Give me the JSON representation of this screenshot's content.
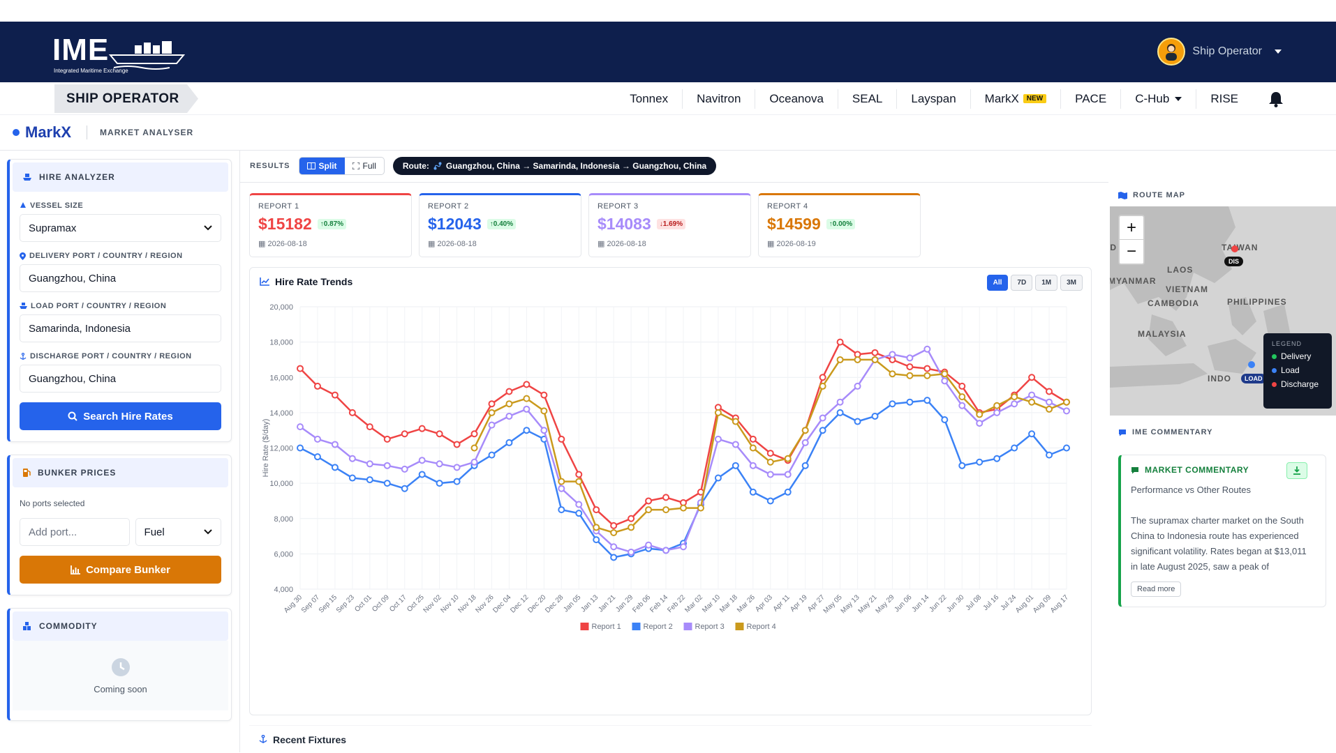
{
  "header": {
    "logo_text": "IME",
    "logo_subtitle": "Integrated Maritime Exchange",
    "user_name": "Ship Operator"
  },
  "subnav": {
    "role": "SHIP OPERATOR",
    "menu": [
      "Tonnex",
      "Navitron",
      "Oceanova",
      "SEAL",
      "Layspan",
      "MarkX",
      "PACE",
      "C-Hub",
      "RISE"
    ],
    "new_badge": "NEW"
  },
  "breadcrumb": {
    "brand": "MarkX",
    "page": "MARKET ANALYSER"
  },
  "hire_analyzer": {
    "title": "HIRE ANALYZER",
    "vessel_size_label": "VESSEL SIZE",
    "vessel_size": "Supramax",
    "delivery_label": "DELIVERY PORT / COUNTRY / REGION",
    "delivery": "Guangzhou, China",
    "load_label": "LOAD PORT / COUNTRY / REGION",
    "load": "Samarinda, Indonesia",
    "discharge_label": "DISCHARGE PORT / COUNTRY / REGION",
    "discharge": "Guangzhou, China",
    "search_button": "Search Hire Rates"
  },
  "bunker": {
    "title": "BUNKER PRICES",
    "empty": "No ports selected",
    "add_port_placeholder": "Add port...",
    "fuel": "Fuel",
    "compare_button": "Compare Bunker"
  },
  "commodity": {
    "title": "COMMODITY",
    "status": "Coming soon"
  },
  "results": {
    "label": "RESULTS",
    "split": "Split",
    "full": "Full",
    "route_label": "Route:",
    "route": "Guangzhou, China → Samarinda, Indonesia → Guangzhou, China"
  },
  "reports": [
    {
      "label": "REPORT 1",
      "price": "$15182",
      "change": "0.87%",
      "dir": "up",
      "date": "2026-08-18",
      "color": "#ef4444"
    },
    {
      "label": "REPORT 2",
      "price": "$12043",
      "change": "0.40%",
      "dir": "up",
      "date": "2026-08-18",
      "color": "#2563eb"
    },
    {
      "label": "REPORT 3",
      "price": "$14083",
      "change": "1.69%",
      "dir": "down",
      "date": "2026-08-18",
      "color": "#a78bfa"
    },
    {
      "label": "REPORT 4",
      "price": "$14599",
      "change": "0.00%",
      "dir": "up",
      "date": "2026-08-19",
      "color": "#d97706"
    }
  ],
  "chart_section": {
    "title": "Hire Rate Trends",
    "ranges": [
      "All",
      "7D",
      "1M",
      "3M"
    ],
    "active_range": "All"
  },
  "chart_data": {
    "type": "line",
    "ylabel": "Hire Rate ($/day)",
    "ylim": [
      4000,
      20000
    ],
    "yticks": [
      "20,000",
      "18,000",
      "16,000",
      "14,000",
      "12,000",
      "10,000",
      "8,000",
      "6,000",
      "4,000"
    ],
    "categories": [
      "Aug 30",
      "Sep 07",
      "Sep 15",
      "Sep 23",
      "Oct 01",
      "Oct 09",
      "Oct 17",
      "Oct 25",
      "Nov 02",
      "Nov 10",
      "Nov 18",
      "Nov 26",
      "Dec 04",
      "Dec 12",
      "Dec 20",
      "Dec 28",
      "Jan 05",
      "Jan 13",
      "Jan 21",
      "Jan 29",
      "Feb 06",
      "Feb 14",
      "Feb 22",
      "Mar 02",
      "Mar 10",
      "Mar 18",
      "Mar 26",
      "Apr 03",
      "Apr 11",
      "Apr 19",
      "Apr 27",
      "May 05",
      "May 13",
      "May 21",
      "May 29",
      "Jun 06",
      "Jun 14",
      "Jun 22",
      "Jun 30",
      "Jul 08",
      "Jul 16",
      "Jul 24",
      "Aug 01",
      "Aug 09",
      "Aug 17"
    ],
    "series": [
      {
        "name": "Report 1",
        "color": "#ef4444",
        "values": [
          16500,
          15500,
          15000,
          14000,
          13200,
          12500,
          12800,
          13100,
          12800,
          12200,
          12800,
          14500,
          15200,
          15600,
          15000,
          12500,
          10500,
          8500,
          7600,
          8000,
          9000,
          9200,
          8900,
          9500,
          14300,
          13700,
          12500,
          11700,
          11300,
          13000,
          16000,
          18000,
          17300,
          17400,
          17000,
          16600,
          16500,
          16300,
          15500,
          14000,
          14200,
          15000,
          16000,
          15200,
          14600
        ]
      },
      {
        "name": "Report 2",
        "color": "#3b82f6",
        "values": [
          12000,
          11500,
          10900,
          10300,
          10200,
          10000,
          9700,
          10500,
          10000,
          10100,
          11000,
          11600,
          12300,
          13000,
          12500,
          8500,
          8300,
          6800,
          5800,
          6000,
          6300,
          6200,
          6600,
          8800,
          10300,
          11000,
          9500,
          9000,
          9500,
          11000,
          13000,
          14000,
          13500,
          13800,
          14500,
          14600,
          14700,
          13600,
          11000,
          11200,
          11400,
          12000,
          12800,
          11600,
          12000
        ]
      },
      {
        "name": "Report 3",
        "color": "#a78bfa",
        "values": [
          13200,
          12500,
          12200,
          11400,
          11100,
          11000,
          10800,
          11300,
          11100,
          10900,
          11200,
          13300,
          13800,
          14200,
          13000,
          9700,
          8800,
          7300,
          6400,
          6100,
          6500,
          6200,
          6400,
          8900,
          12500,
          12200,
          11000,
          10500,
          10500,
          12300,
          13700,
          14600,
          15500,
          17000,
          17300,
          17100,
          17600,
          15800,
          14400,
          13400,
          14000,
          14500,
          15000,
          14600,
          14100
        ]
      },
      {
        "name": "Report 4",
        "color": "#ca9a1d",
        "values": [
          null,
          null,
          null,
          null,
          null,
          null,
          null,
          null,
          null,
          null,
          12000,
          14000,
          14500,
          14800,
          14100,
          10100,
          10100,
          7500,
          7200,
          7500,
          8500,
          8500,
          8600,
          8600,
          14000,
          13500,
          12000,
          11200,
          11400,
          13000,
          15500,
          17000,
          17000,
          17000,
          16200,
          16100,
          16100,
          16200,
          14900,
          13900,
          14400,
          14900,
          14600,
          14200,
          14600
        ]
      }
    ]
  },
  "fixtures": {
    "title": "Recent Fixtures"
  },
  "route_map": {
    "title": "ROUTE MAP",
    "labels": [
      "LAOS",
      "VIETNAM",
      "CAMBODIA",
      "PHILIPPINES",
      "MALAYSIA",
      "MYANMAR",
      "TAIWAN",
      "INDO"
    ],
    "legend_title": "LEGEND",
    "legend": [
      {
        "label": "Delivery",
        "color": "#22c55e"
      },
      {
        "label": "Load",
        "color": "#3b82f6"
      },
      {
        "label": "Discharge",
        "color": "#ef4444"
      }
    ],
    "dis_tag": "DIS",
    "load_tag": "LOAD"
  },
  "commentary": {
    "section_title": "IME COMMENTARY",
    "title": "MARKET COMMENTARY",
    "subtitle": "Performance vs Other Routes",
    "body": "The supramax charter market on the South China to Indonesia route has experienced significant volatility. Rates began at $13,011 in late August 2025, saw a peak of",
    "read_more": "Read more"
  }
}
